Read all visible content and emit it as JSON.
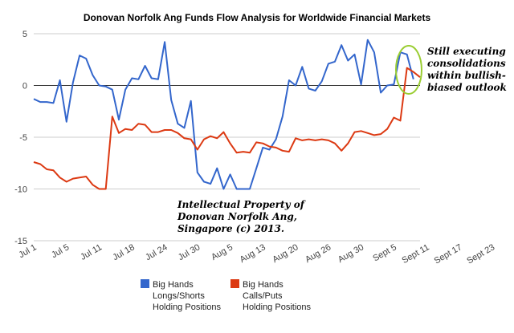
{
  "chart_data": {
    "type": "line",
    "title": "Donovan Norfolk Ang Funds Flow Analysis for Worldwide Financial Markets",
    "xlabel": "",
    "ylabel": "",
    "ylim": [
      -15,
      5
    ],
    "yticks": [
      5,
      0,
      -5,
      -10,
      -15
    ],
    "grid": true,
    "legend_position": "bottom",
    "x_tick_labels": [
      "Jul 1",
      "Jul 5",
      "Jul 11",
      "Jul 18",
      "Jul 24",
      "Jul 30",
      "Aug 5",
      "Aug 13",
      "Aug 20",
      "Aug 26",
      "Aug 30",
      "Sept 5",
      "Sept 11",
      "Sept 17",
      "Sept 23"
    ],
    "x_tick_index": [
      0,
      5,
      10,
      15,
      20,
      25,
      30,
      35,
      40,
      45,
      50,
      55,
      60,
      65,
      70
    ],
    "series": [
      {
        "name": "Big Hands Longs/Shorts Holding Positions",
        "legend_lines": [
          "Big Hands",
          "Longs/Shorts",
          "Holding Positions"
        ],
        "color": "#3366cc",
        "values": [
          -1.3,
          -1.6,
          -1.6,
          -1.7,
          0.5,
          -3.5,
          0.3,
          2.9,
          2.6,
          1.0,
          0.0,
          -0.1,
          -0.4,
          -3.3,
          -0.4,
          0.7,
          0.6,
          1.9,
          0.7,
          0.6,
          4.2,
          -1.4,
          -3.7,
          -4.1,
          -1.5,
          -8.4,
          -9.3,
          -9.5,
          -8.0,
          -10.0,
          -8.6,
          -10.0,
          -10.0,
          -10.0,
          -8.0,
          -6.0,
          -6.2,
          -5.2,
          -3.0,
          0.5,
          0.0,
          1.8,
          -0.3,
          -0.5,
          0.4,
          2.1,
          2.3,
          3.9,
          2.4,
          3.0,
          0.1,
          4.4,
          3.2,
          -0.7,
          0.0,
          0.1,
          3.2,
          3.0,
          0.6
        ]
      },
      {
        "name": "Big Hands Calls/Puts Holding Positions",
        "legend_lines": [
          "Big Hands",
          "Calls/Puts",
          "Holding Positions"
        ],
        "color": "#dc3912",
        "values": [
          -7.4,
          -7.6,
          -8.1,
          -8.2,
          -8.9,
          -9.3,
          -9.0,
          -8.9,
          -8.8,
          -9.6,
          -10.0,
          -10.0,
          -3.0,
          -4.6,
          -4.2,
          -4.3,
          -3.7,
          -3.8,
          -4.5,
          -4.5,
          -4.3,
          -4.3,
          -4.6,
          -5.1,
          -5.2,
          -6.2,
          -5.2,
          -4.9,
          -5.1,
          -4.5,
          -5.6,
          -6.5,
          -6.4,
          -6.5,
          -5.5,
          -5.6,
          -5.9,
          -6.0,
          -6.3,
          -6.4,
          -5.1,
          -5.3,
          -5.2,
          -5.3,
          -5.2,
          -5.3,
          -5.6,
          -6.3,
          -5.6,
          -4.5,
          -4.4,
          -4.6,
          -4.8,
          -4.7,
          -4.2,
          -3.1,
          -3.4,
          1.7,
          1.3,
          0.8
        ]
      }
    ],
    "annotations": {
      "callout_lines": [
        "Still executing",
        "consolidations",
        "within bullish-",
        "biased outlook"
      ],
      "copyright_lines": [
        "Intellectual Property of",
        "Donovan Norfolk Ang,",
        "Singapore (c) 2013."
      ],
      "highlight_color": "#9acd32"
    }
  }
}
